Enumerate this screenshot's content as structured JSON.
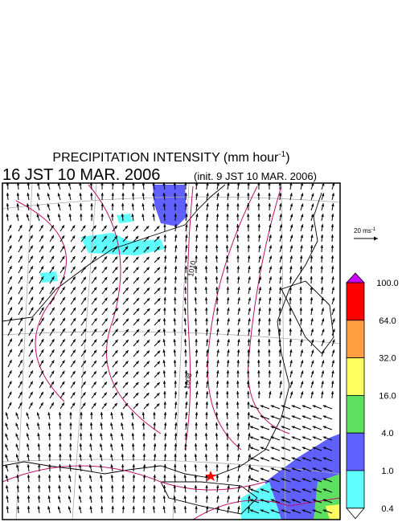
{
  "title": {
    "main": "PRECIPITATION INTENSITY (mm hour",
    "superscript": "-1",
    "close": ")"
  },
  "subtitle": {
    "time": "16 JST 10 MAR. 2006",
    "init": "(init. 9 JST 10 MAR. 2006)"
  },
  "reference_vector": {
    "label": "20 ms",
    "superscript": "-1"
  },
  "contour_labels": [
    "1010",
    "1008"
  ],
  "colorbar": {
    "labels": [
      "100.0",
      "64.0",
      "32.0",
      "16.0",
      "4.0",
      "1.0",
      "0.4"
    ],
    "colors": [
      "#cc00ff",
      "#ff0000",
      "#ffa040",
      "#ffff60",
      "#60e060",
      "#6060ff",
      "#60ffff",
      "#ffffff"
    ]
  }
}
